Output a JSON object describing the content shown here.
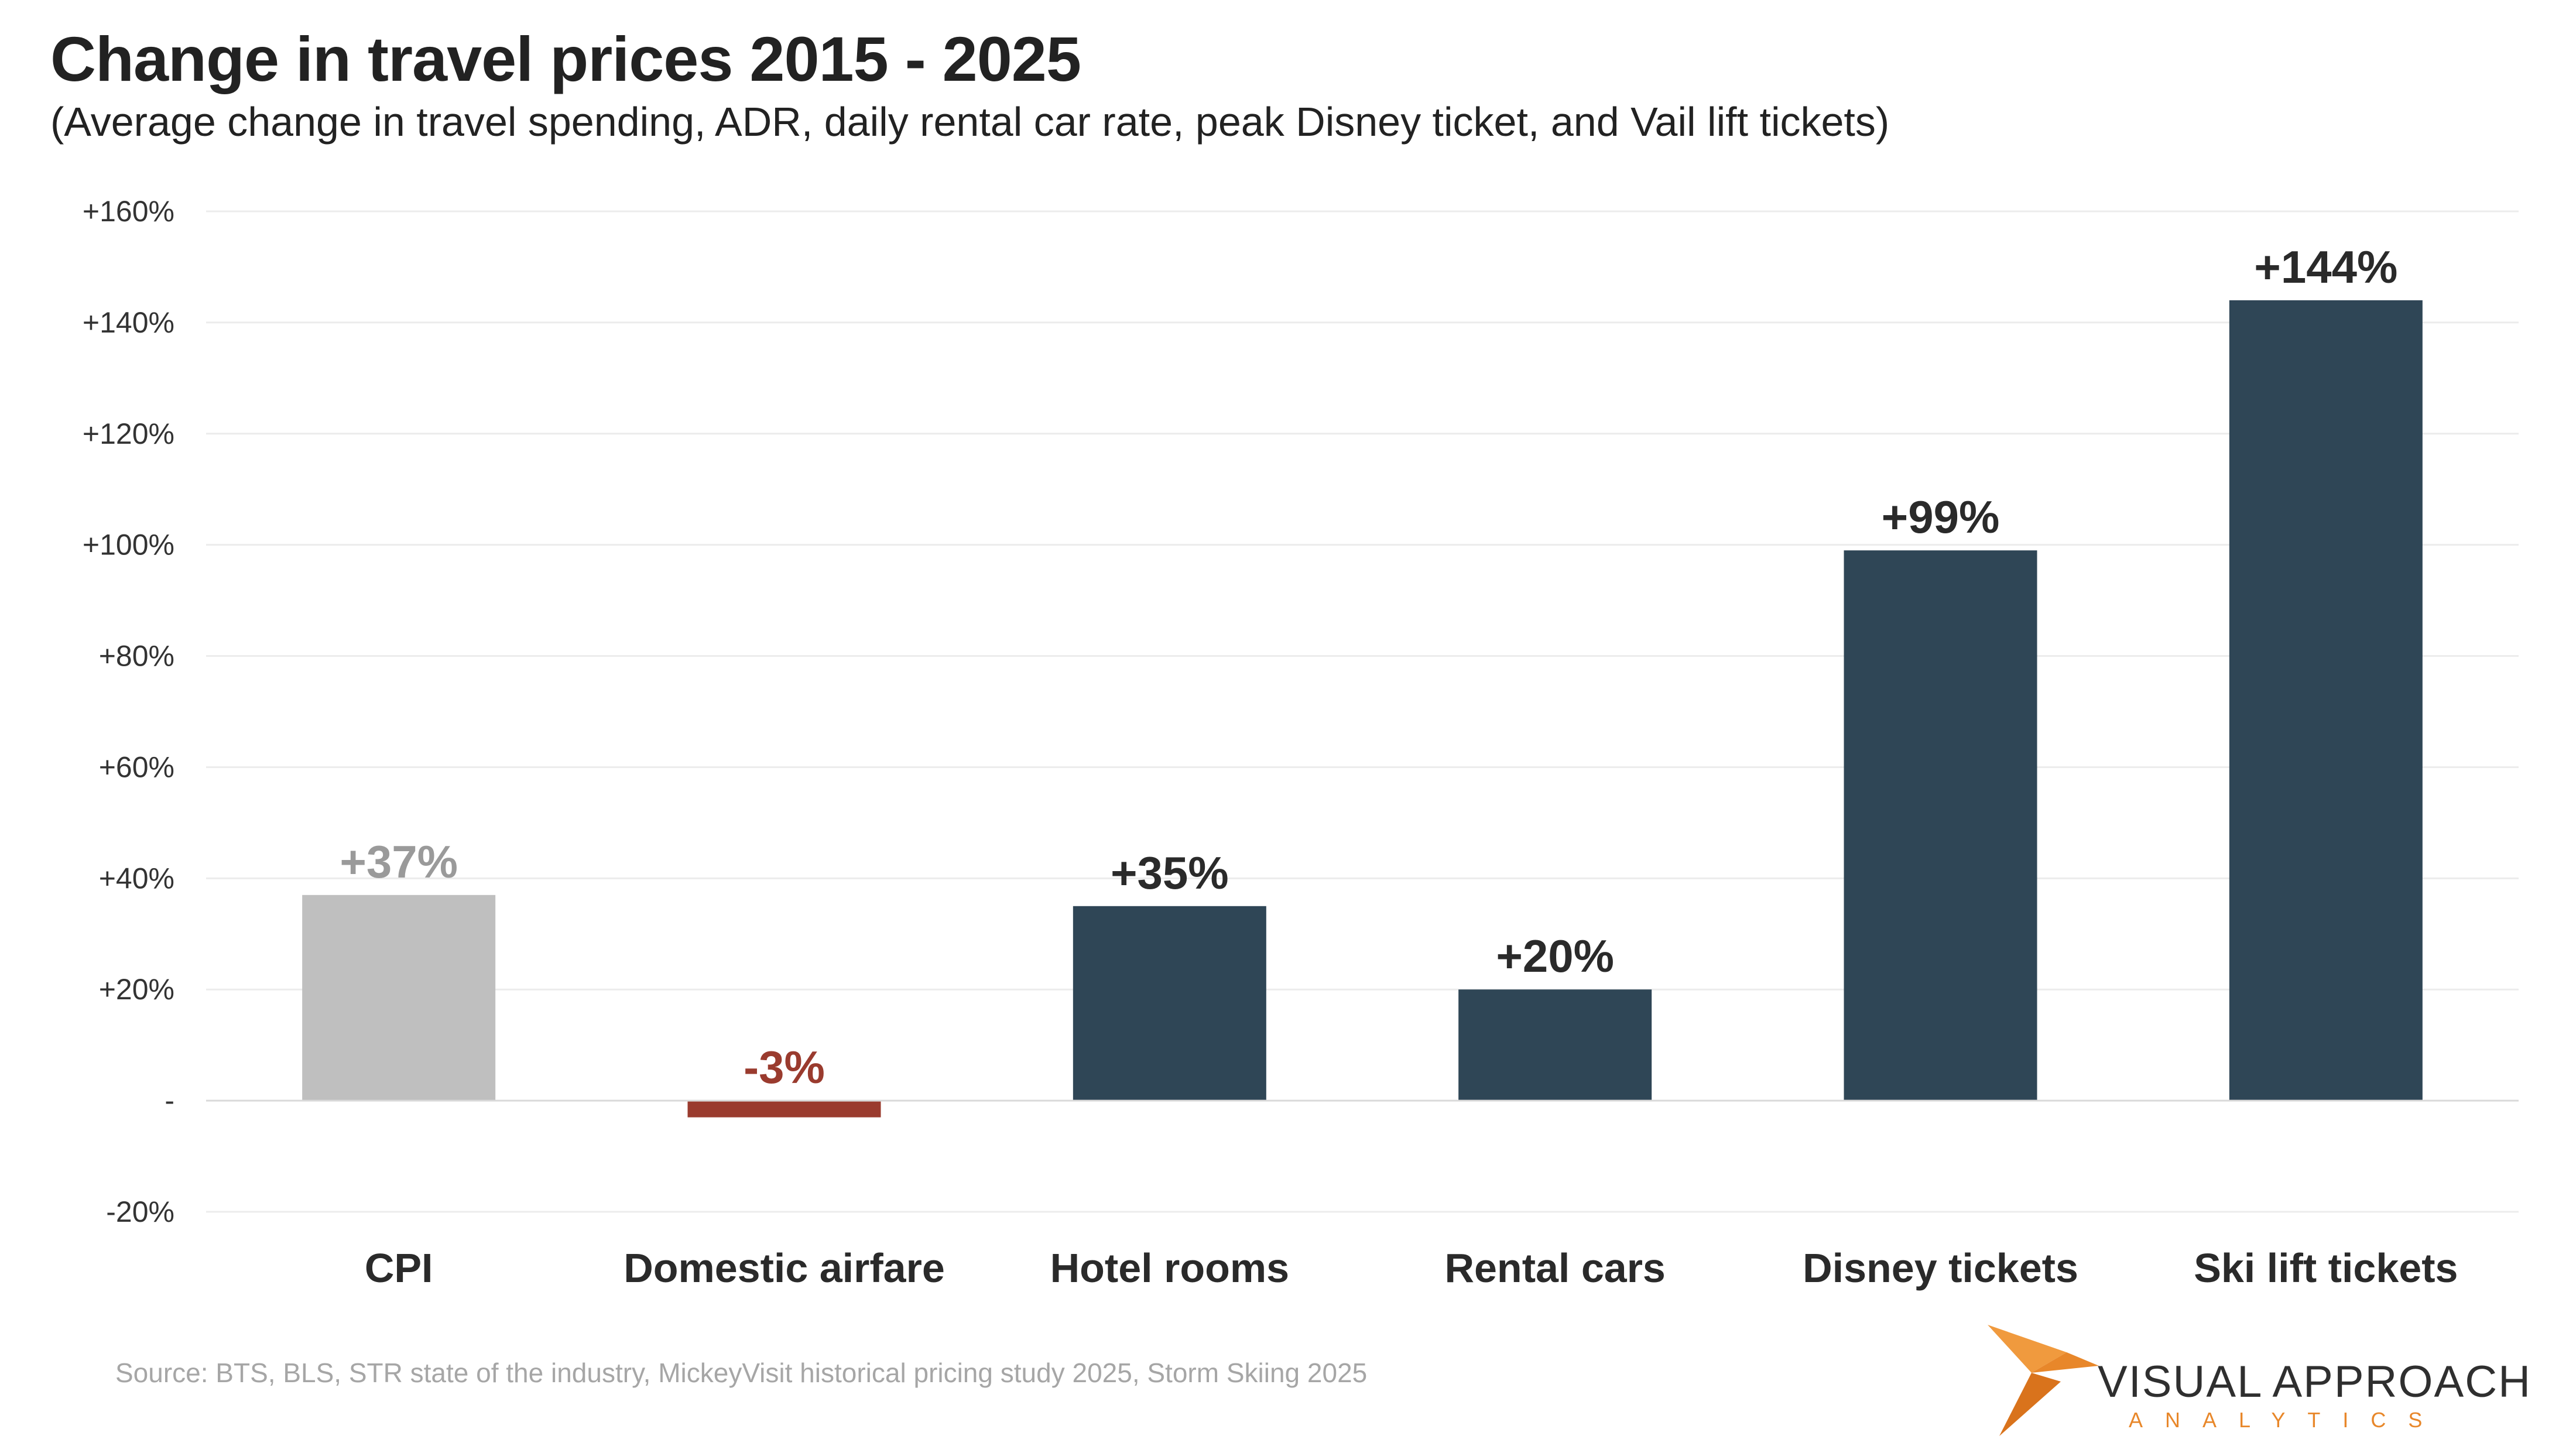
{
  "chart_data": {
    "type": "bar",
    "title": "Change in travel prices 2015 - 2025",
    "subtitle": "(Average change in travel spending, ADR, daily rental car rate, peak Disney ticket, and Vail lift tickets)",
    "categories": [
      "CPI",
      "Domestic airfare",
      "Hotel rooms",
      "Rental cars",
      "Disney tickets",
      "Ski lift tickets"
    ],
    "values": [
      37,
      -3,
      35,
      20,
      99,
      144
    ],
    "data_labels": [
      "+37%",
      "-3%",
      "+35%",
      "+20%",
      "+99%",
      "+144%"
    ],
    "bar_colors": [
      "#bfbfbf",
      "#9a3b2e",
      "#2f4656",
      "#2f4656",
      "#2f4656",
      "#2f4656"
    ],
    "label_colors": [
      "#9a9a9a",
      "#9a3b2e",
      "#2a2a2a",
      "#2a2a2a",
      "#2a2a2a",
      "#2a2a2a"
    ],
    "ylim": [
      -20,
      160
    ],
    "y_ticks": [
      -20,
      0,
      20,
      40,
      60,
      80,
      100,
      120,
      140,
      160
    ],
    "y_tick_labels": [
      "-20%",
      "-",
      "+20%",
      "+40%",
      "+60%",
      "+80%",
      "+100%",
      "+120%",
      "+140%",
      "+160%"
    ],
    "xlabel": "",
    "ylabel": "",
    "grid": true,
    "legend": "none"
  },
  "source": "Source: BTS, BLS, STR state of the industry, MickeyVisit historical pricing study 2025, Storm Skiing 2025",
  "logo": {
    "name": "VISUAL APPROACH",
    "tagline": "ANALYTICS",
    "accent": "#e8872a"
  }
}
